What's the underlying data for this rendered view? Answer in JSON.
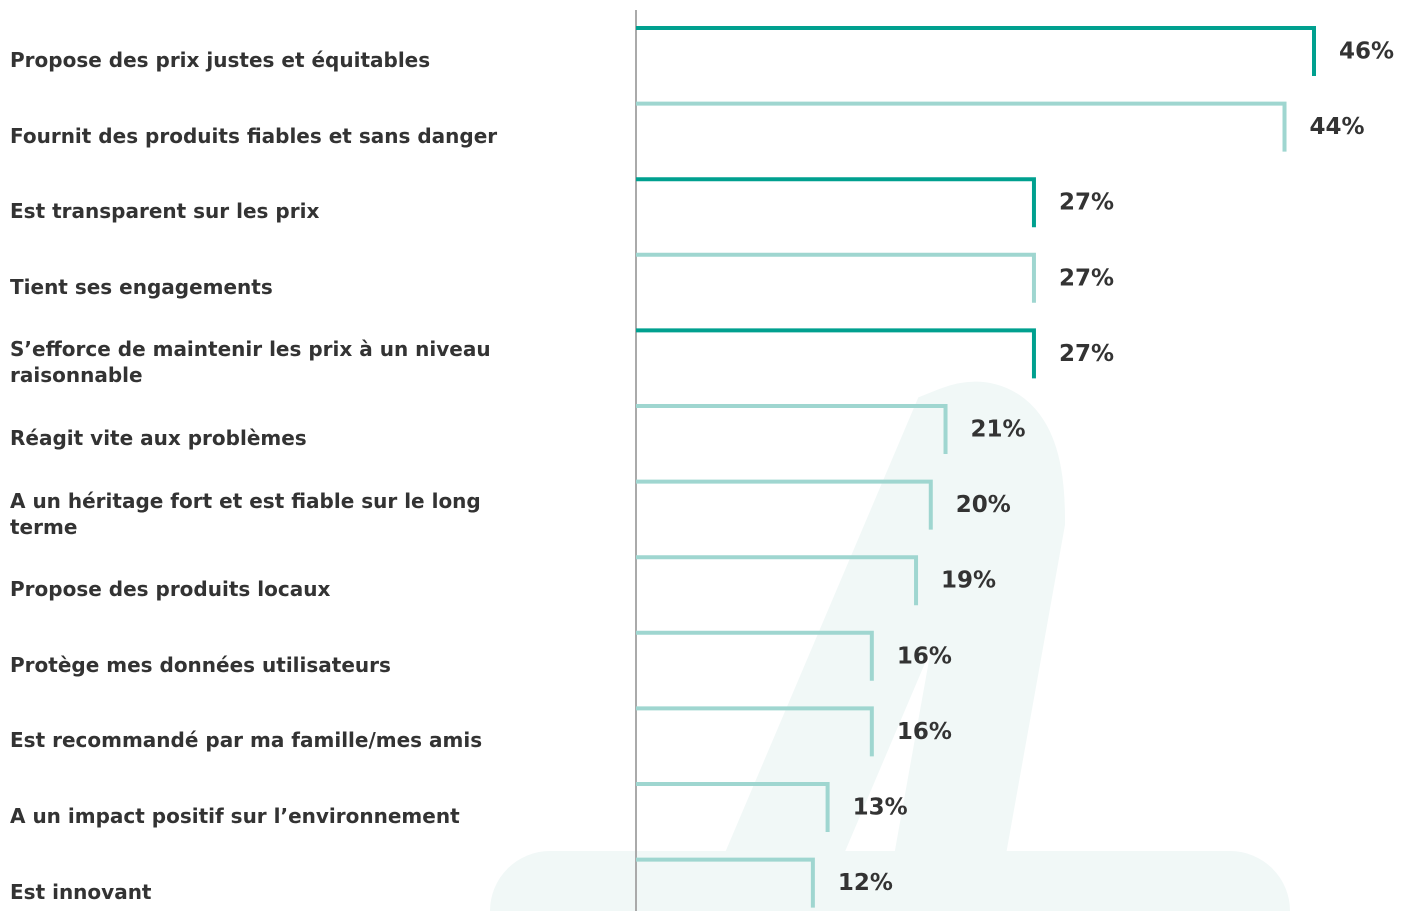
{
  "chart_data": {
    "type": "bracket-bar",
    "categories": [
      "Propose des prix justes et équitables",
      "Fournit des produits fiables et sans danger",
      "Est transparent sur les prix",
      "Tient ses engagements",
      "S’efforce de maintenir les prix à un niveau raisonnable",
      "Réagit vite aux problèmes",
      "A un héritage fort et est fiable sur le long terme",
      "Propose des produits locaux",
      "Protège mes données utilisateurs",
      "Est recommandé par ma famille/mes amis",
      "A un impact positif sur l’environnement",
      "Est innovant"
    ],
    "values": [
      46,
      44,
      27,
      27,
      27,
      21,
      20,
      19,
      16,
      16,
      13,
      12
    ],
    "value_labels": [
      "46%",
      "44%",
      "27%",
      "27%",
      "27%",
      "21%",
      "20%",
      "19%",
      "16%",
      "16%",
      "13%",
      "12%"
    ],
    "highlighted": [
      true,
      false,
      true,
      false,
      true,
      false,
      false,
      false,
      false,
      false,
      false,
      false
    ],
    "color": "#9fd6d0",
    "highlight_color": "#00a08f"
  }
}
